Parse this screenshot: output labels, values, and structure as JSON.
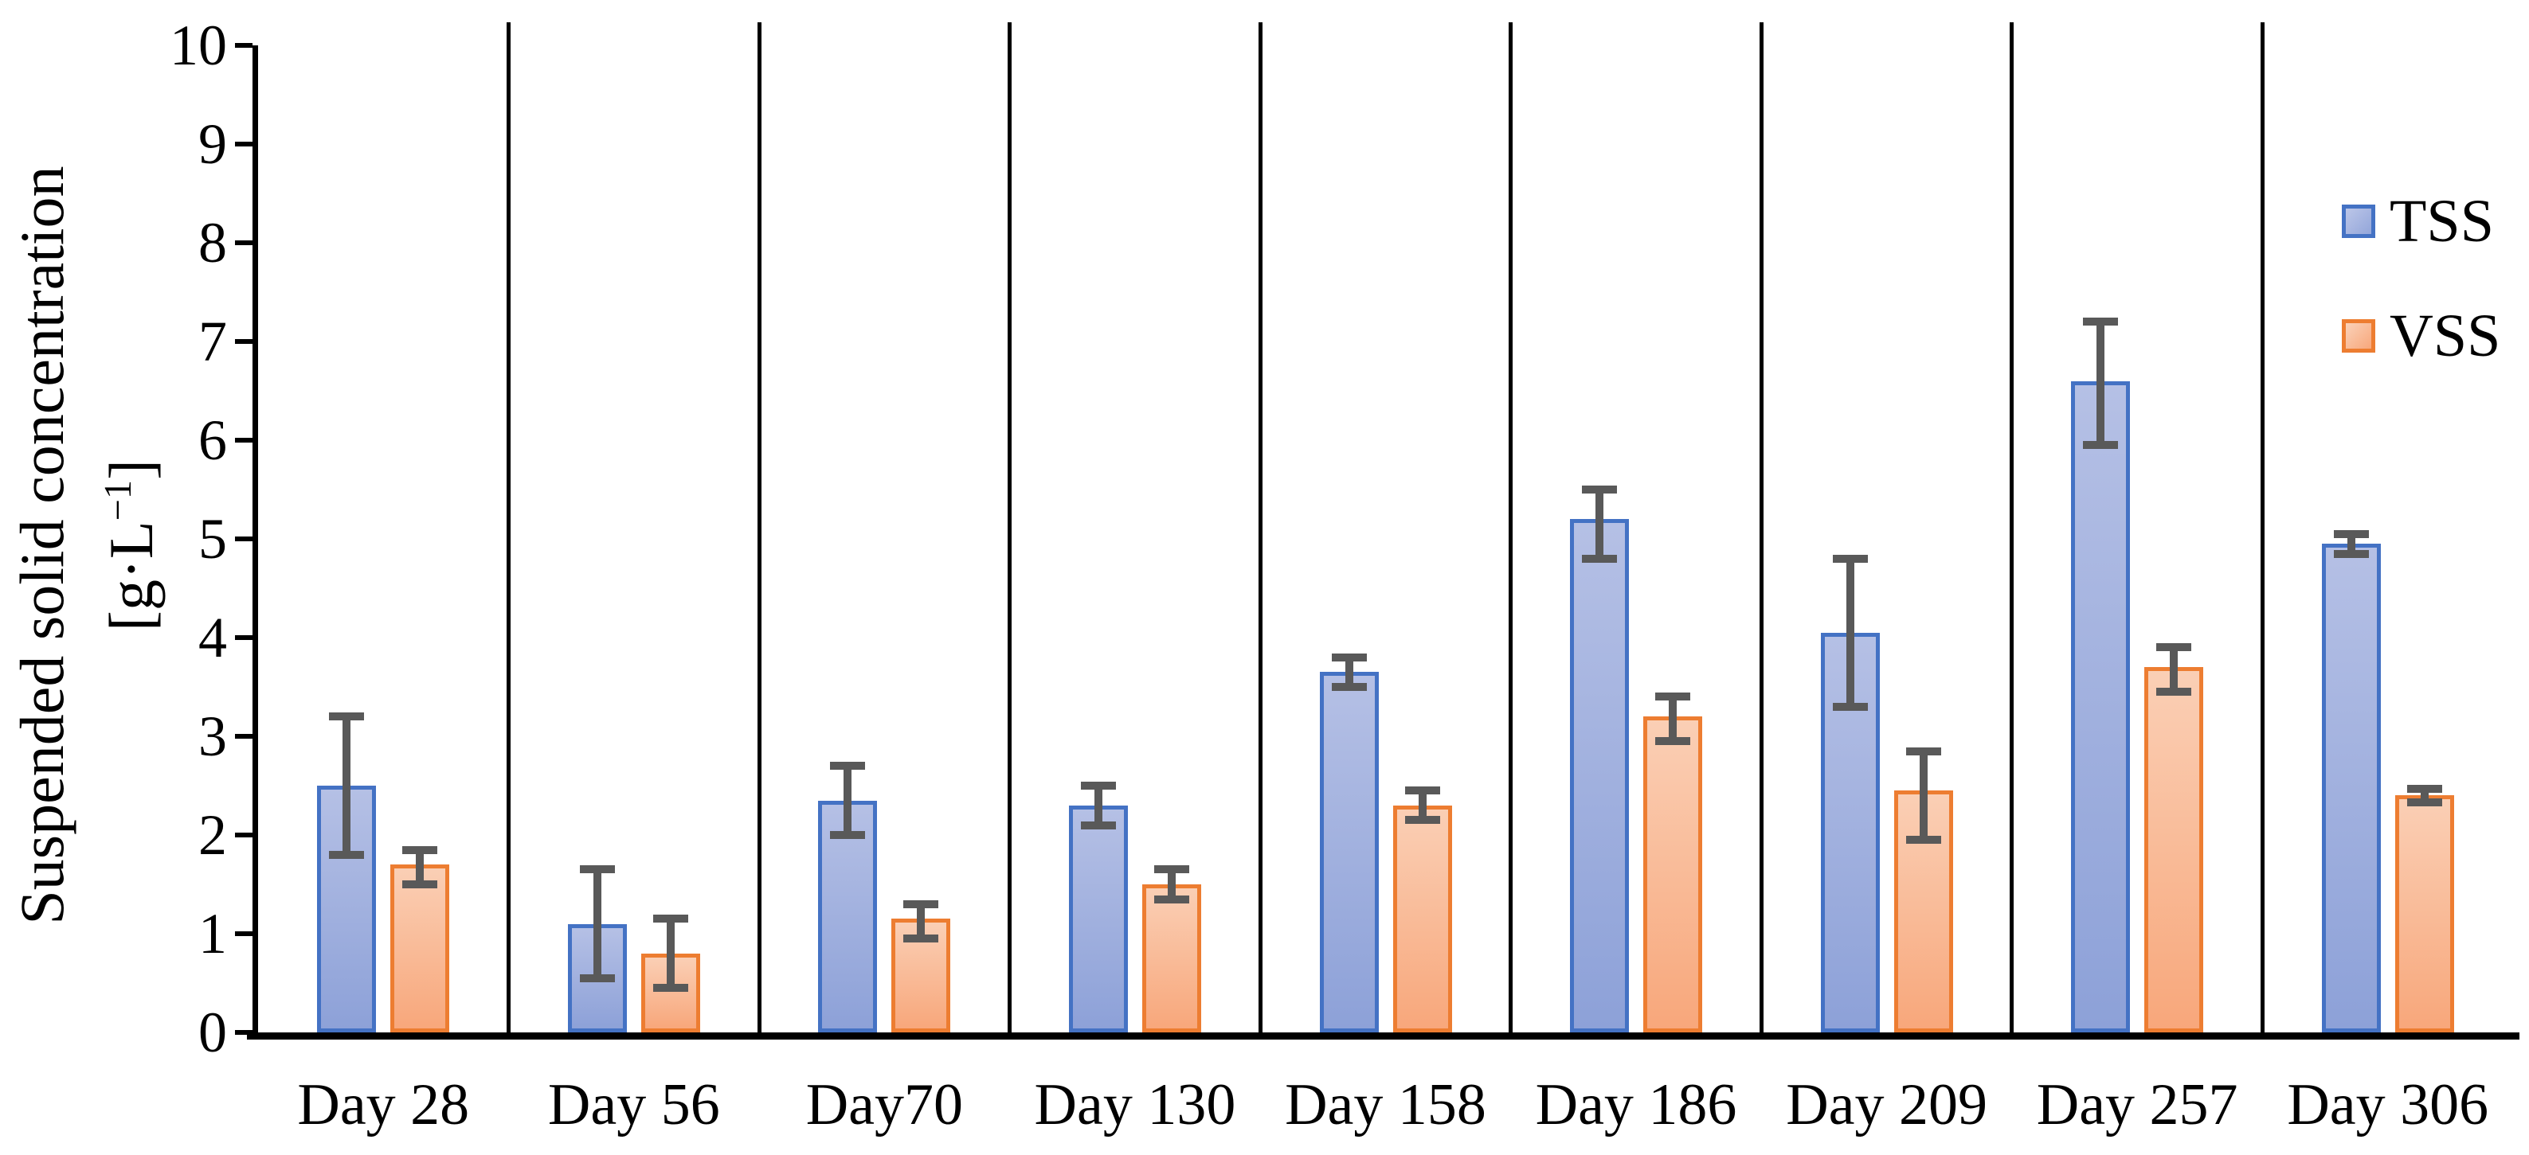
{
  "chart_data": {
    "type": "bar",
    "title": "",
    "ylabel_line1": "Suspended solid concentration",
    "ylabel_unit_prefix": "[g·L",
    "ylabel_unit_sup": "−1",
    "ylabel_unit_suffix": "]",
    "xlabel": "",
    "ylim": [
      0,
      10
    ],
    "yticks": [
      0,
      1,
      2,
      3,
      4,
      5,
      6,
      7,
      8,
      9,
      10
    ],
    "grid": "vertical-category-dividers",
    "legend_position": "top-right",
    "categories": [
      "Day 28",
      "Day 56",
      "Day70",
      "Day 130",
      "Day 158",
      "Day 186",
      "Day 209",
      "Day 257",
      "Day 306"
    ],
    "series": [
      {
        "name": "TSS",
        "border_color": "#4472C4",
        "fill_top": "#B5C0E5",
        "fill_bottom": "#8DA1D8",
        "values": [
          2.5,
          1.1,
          2.35,
          2.3,
          3.65,
          5.2,
          4.05,
          6.6,
          4.95
        ],
        "err_low": [
          1.8,
          0.55,
          2.0,
          2.1,
          3.5,
          4.8,
          3.3,
          5.95,
          4.85
        ],
        "err_high": [
          3.2,
          1.65,
          2.7,
          2.5,
          3.8,
          5.5,
          4.8,
          7.2,
          5.05
        ]
      },
      {
        "name": "VSS",
        "border_color": "#ED7D31",
        "fill_top": "#FACFB5",
        "fill_bottom": "#F8A77B",
        "values": [
          1.7,
          0.8,
          1.15,
          1.5,
          2.3,
          3.2,
          2.45,
          3.7,
          2.4
        ],
        "err_low": [
          1.5,
          0.45,
          0.95,
          1.35,
          2.15,
          2.95,
          1.95,
          3.45,
          2.33
        ],
        "err_high": [
          1.85,
          1.15,
          1.3,
          1.65,
          2.45,
          3.4,
          2.85,
          3.9,
          2.47
        ]
      }
    ],
    "error_bar_color": "#595959",
    "axis_color": "#000000"
  }
}
